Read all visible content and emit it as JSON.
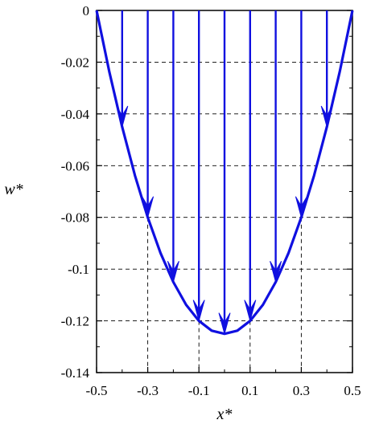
{
  "chart_data": {
    "type": "line",
    "title": "",
    "xlabel": "x*",
    "ylabel": "w*",
    "xlim": [
      -0.5,
      0.5
    ],
    "ylim": [
      -0.14,
      0
    ],
    "x_ticks": [
      -0.5,
      -0.3,
      -0.1,
      0.1,
      0.3,
      0.5
    ],
    "x_tick_labels": [
      "-0.5",
      "-0.3",
      "-0.1",
      "0.1",
      "0.3",
      "0.5"
    ],
    "y_ticks": [
      0,
      -0.02,
      -0.04,
      -0.06,
      -0.08,
      -0.1,
      -0.12,
      -0.14
    ],
    "y_tick_labels": [
      "0",
      "-0.02",
      "-0.04",
      "-0.06",
      "-0.08",
      "-0.1",
      "-0.12",
      "-0.14"
    ],
    "grid": "dashed",
    "series": [
      {
        "x": [
          -0.5,
          -0.45,
          -0.4,
          -0.35,
          -0.3,
          -0.25,
          -0.2,
          -0.15,
          -0.1,
          -0.05,
          0,
          0.05,
          0.1,
          0.15,
          0.2,
          0.25,
          0.3,
          0.35,
          0.4,
          0.45,
          0.5
        ],
        "y": [
          0,
          -0.0238,
          -0.045,
          -0.0638,
          -0.08,
          -0.0938,
          -0.105,
          -0.1138,
          -0.12,
          -0.1238,
          -0.125,
          -0.1238,
          -0.12,
          -0.1138,
          -0.105,
          -0.0938,
          -0.08,
          -0.0638,
          -0.045,
          -0.0238,
          0
        ]
      }
    ],
    "arrows": {
      "x": [
        -0.4,
        -0.3,
        -0.2,
        -0.1,
        0,
        0.1,
        0.2,
        0.3,
        0.4
      ],
      "from_y": 0,
      "to_y": [
        -0.045,
        -0.08,
        -0.105,
        -0.12,
        -0.125,
        -0.12,
        -0.105,
        -0.08,
        -0.045
      ]
    },
    "colors": {
      "curve": "#1010e0",
      "grid": "#000000"
    }
  }
}
